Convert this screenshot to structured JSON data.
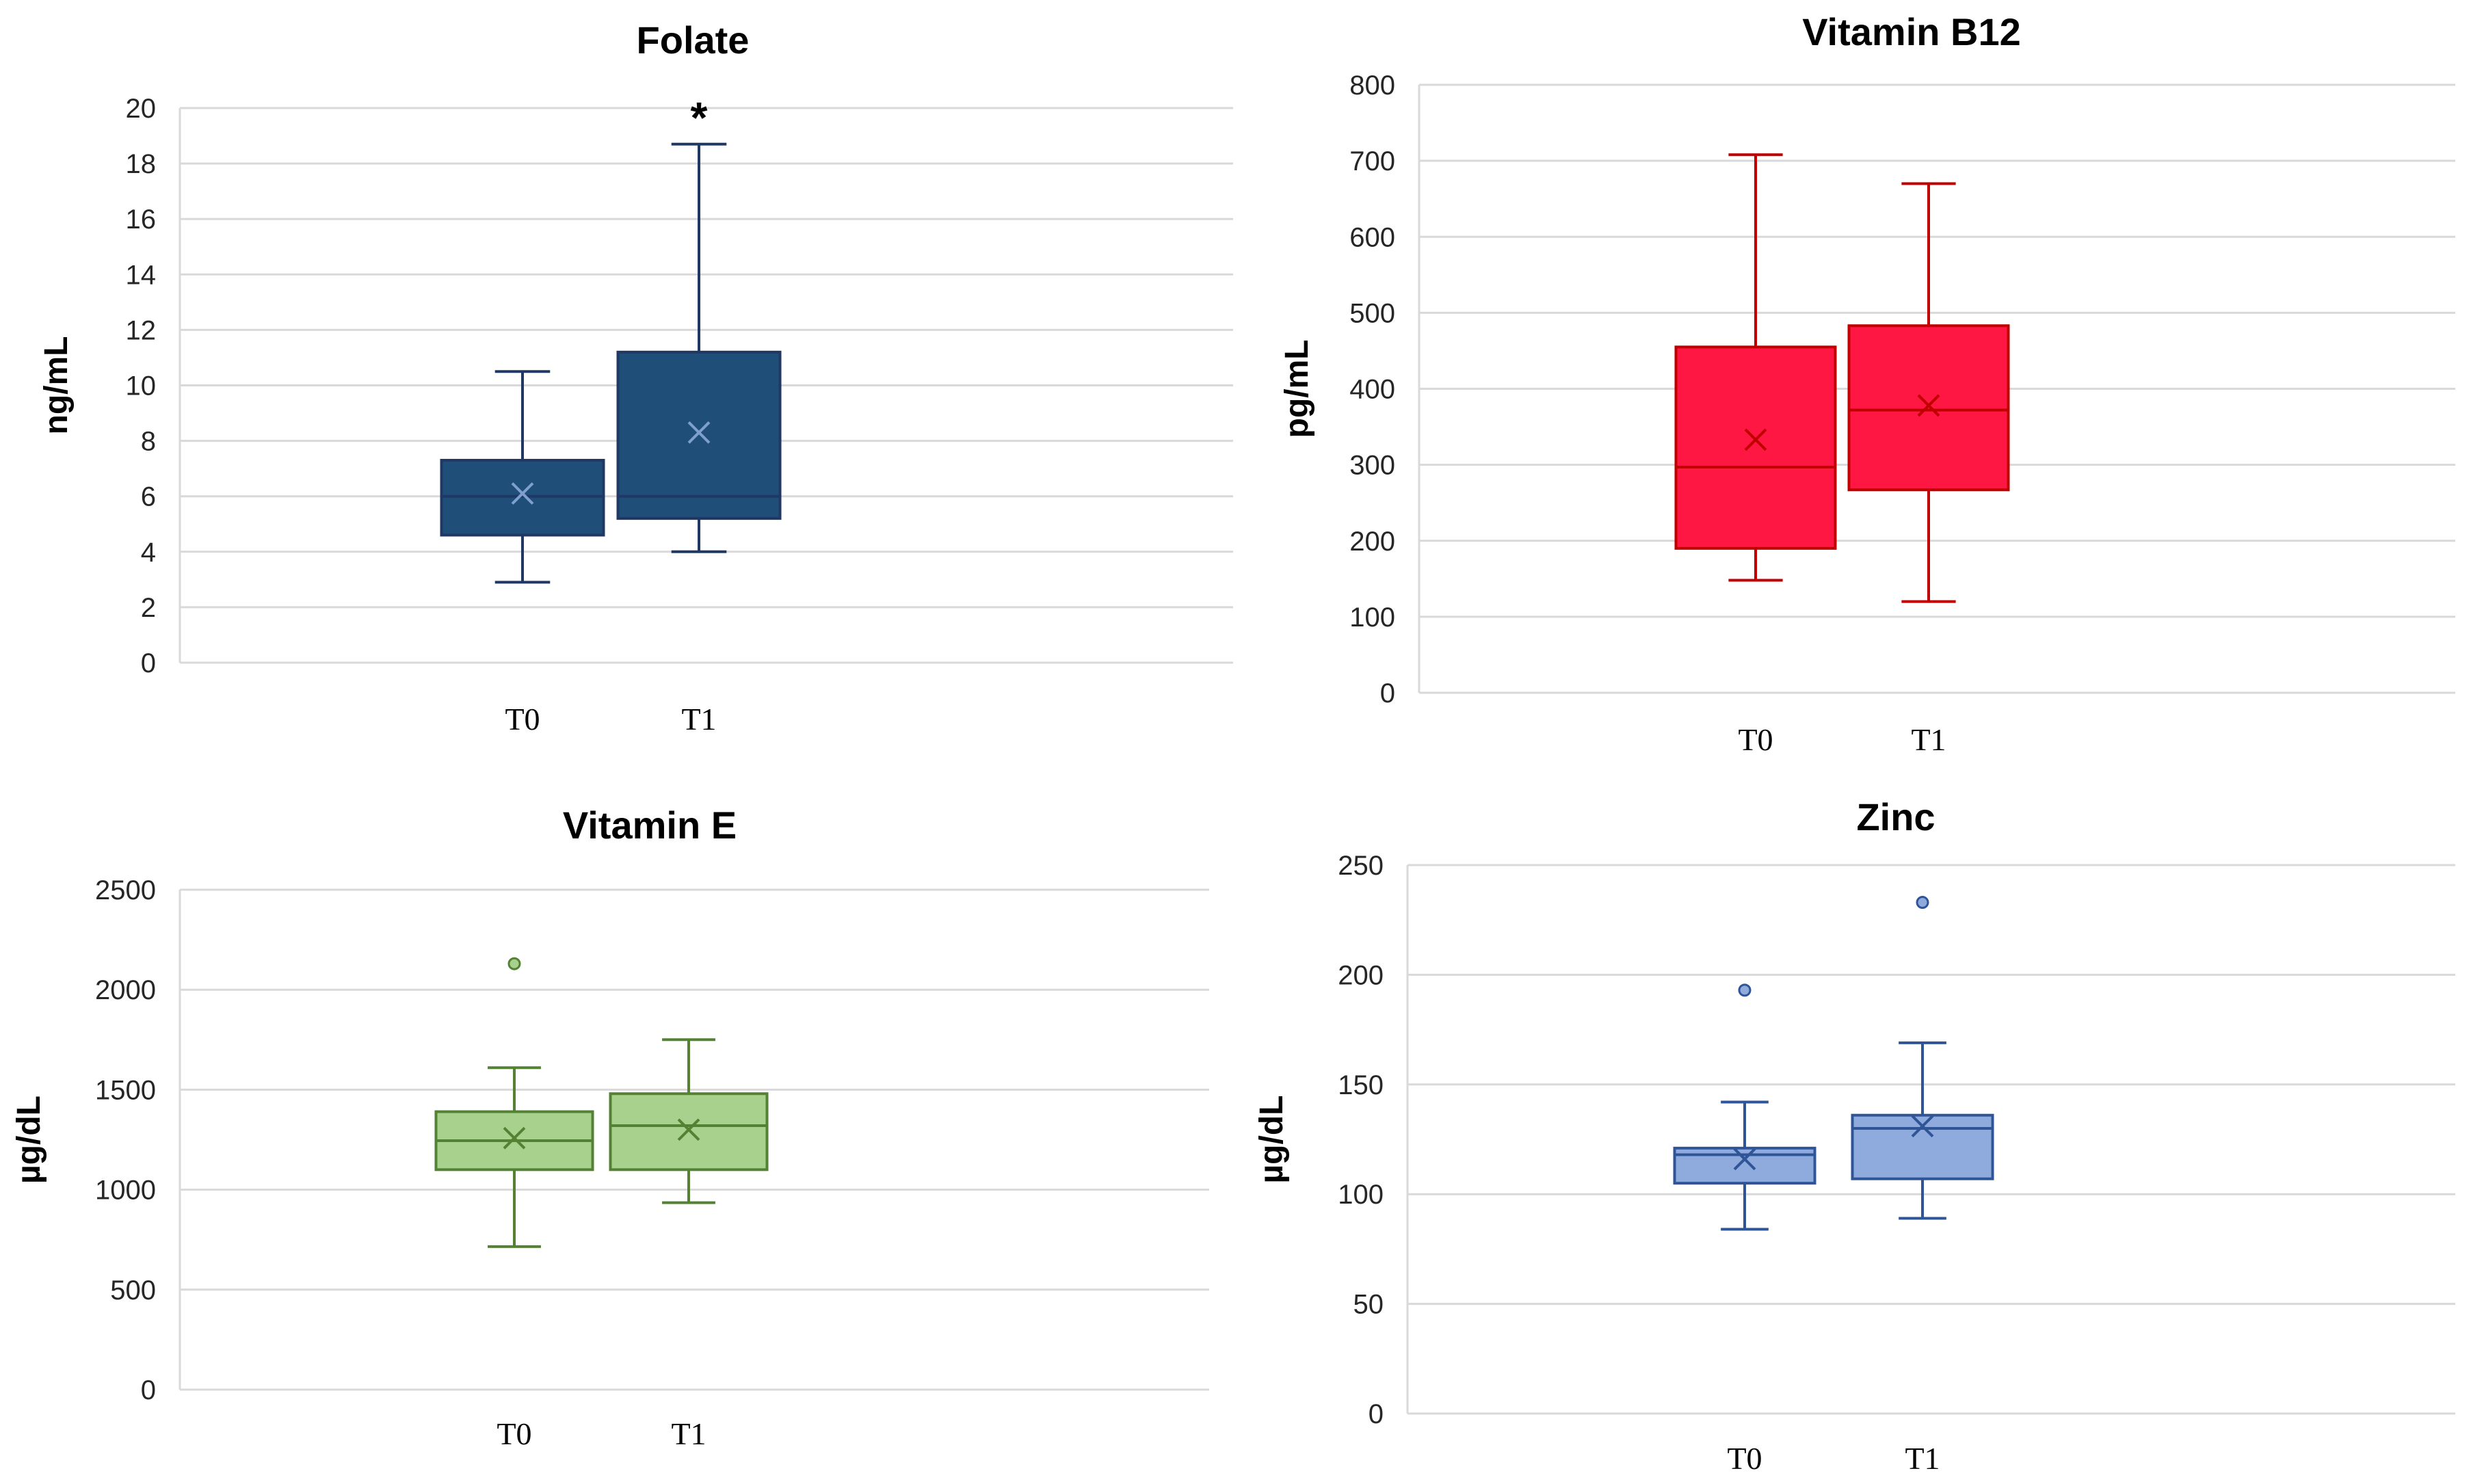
{
  "chart_data": [
    {
      "type": "box",
      "title": "Folate",
      "xlabel": "",
      "ylabel": "ng/mL",
      "ylim": [
        0,
        20
      ],
      "yticks": [
        0,
        2,
        4,
        6,
        8,
        10,
        12,
        14,
        16,
        18,
        20
      ],
      "grid": true,
      "categories": [
        "T0",
        "T1"
      ],
      "color": {
        "fill": "#1f4e79",
        "stroke": "#1f3864",
        "marker": "#7f9fcf"
      },
      "boxes": [
        {
          "category": "T0",
          "min": 2.9,
          "q1": 4.6,
          "median": 6.0,
          "q3": 7.3,
          "max": 10.5,
          "mean": 6.1,
          "outliers": []
        },
        {
          "category": "T1",
          "min": 4.0,
          "q1": 5.2,
          "median": 6.0,
          "q3": 11.2,
          "max": 18.7,
          "mean": 8.3,
          "outliers": []
        }
      ],
      "annotations": [
        {
          "category": "T1",
          "text": "*",
          "value": 19.7
        }
      ]
    },
    {
      "type": "box",
      "title": "Vitamin B12",
      "xlabel": "",
      "ylabel": "pg/mL",
      "ylim": [
        0,
        800
      ],
      "yticks": [
        0,
        100,
        200,
        300,
        400,
        500,
        600,
        700,
        800
      ],
      "grid": true,
      "categories": [
        "T0",
        "T1"
      ],
      "color": {
        "fill": "#ff1744",
        "stroke": "#c00000",
        "marker": "#c00000"
      },
      "boxes": [
        {
          "category": "T0",
          "min": 148,
          "q1": 190,
          "median": 297,
          "q3": 455,
          "max": 708,
          "mean": 333,
          "outliers": []
        },
        {
          "category": "T1",
          "min": 120,
          "q1": 267,
          "median": 372,
          "q3": 483,
          "max": 670,
          "mean": 378,
          "outliers": []
        }
      ],
      "annotations": []
    },
    {
      "type": "box",
      "title": "Vitamin E",
      "xlabel": "",
      "ylabel": "µg/dL",
      "ylim": [
        0,
        2500
      ],
      "yticks": [
        0,
        500,
        1000,
        1500,
        2000,
        2500
      ],
      "grid": true,
      "categories": [
        "T0",
        "T1"
      ],
      "color": {
        "fill": "#a9d18e",
        "stroke": "#548235",
        "marker": "#548235"
      },
      "boxes": [
        {
          "category": "T0",
          "min": 715,
          "q1": 1100,
          "median": 1245,
          "q3": 1390,
          "max": 1610,
          "mean": 1258,
          "outliers": [
            2130
          ]
        },
        {
          "category": "T1",
          "min": 935,
          "q1": 1100,
          "median": 1320,
          "q3": 1480,
          "max": 1750,
          "mean": 1300,
          "outliers": []
        }
      ],
      "annotations": []
    },
    {
      "type": "box",
      "title": "Zinc",
      "xlabel": "",
      "ylabel": "µg/dL",
      "ylim": [
        0,
        250
      ],
      "yticks": [
        0,
        50,
        100,
        150,
        200,
        250
      ],
      "grid": true,
      "categories": [
        "T0",
        "T1"
      ],
      "color": {
        "fill": "#8faadc",
        "stroke": "#2f5597",
        "marker": "#2f5597"
      },
      "boxes": [
        {
          "category": "T0",
          "min": 84,
          "q1": 105,
          "median": 118,
          "q3": 121,
          "max": 142,
          "mean": 116,
          "outliers": [
            193
          ]
        },
        {
          "category": "T1",
          "min": 89,
          "q1": 107,
          "median": 130,
          "q3": 136,
          "max": 169,
          "mean": 131,
          "outliers": [
            233
          ]
        }
      ],
      "annotations": []
    }
  ]
}
